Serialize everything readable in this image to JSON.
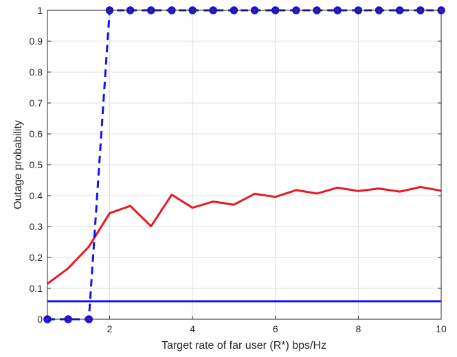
{
  "chart_data": {
    "type": "line",
    "xlabel": "Target rate of far user (R*) bps/Hz",
    "ylabel": "Outage probability",
    "xlim": [
      0.5,
      10
    ],
    "ylim": [
      0,
      1
    ],
    "xticks": [
      2,
      4,
      6,
      8,
      10
    ],
    "yticks": [
      0,
      0.1,
      0.2,
      0.3,
      0.4,
      0.5,
      0.6,
      0.7,
      0.8,
      0.9,
      1
    ],
    "grid": true,
    "series": [
      {
        "color": "#e8191e",
        "style": "solid",
        "x": [
          0.5,
          1,
          1.5,
          2,
          2.5,
          3,
          3.5,
          4,
          4.5,
          5,
          5.5,
          6,
          6.5,
          7,
          7.5,
          8,
          8.5,
          9,
          9.5,
          10
        ],
        "values": [
          0.115,
          0.165,
          0.235,
          0.343,
          0.367,
          0.301,
          0.403,
          0.361,
          0.381,
          0.371,
          0.406,
          0.396,
          0.418,
          0.407,
          0.426,
          0.415,
          0.423,
          0.413,
          0.428,
          0.416
        ]
      },
      {
        "color": "#1212ee",
        "style": "solid",
        "x": [
          0.5,
          10
        ],
        "values": [
          0.058,
          0.058
        ]
      },
      {
        "color": "#1212ee",
        "style": "dashed",
        "marker": "circle",
        "marker_face": "#1212ee",
        "marker_center": "#e8191e",
        "x": [
          0.5,
          1,
          1.5,
          2,
          2.5,
          3,
          3.5,
          4,
          4.5,
          5,
          5.5,
          6,
          6.5,
          7,
          7.5,
          8,
          8.5,
          9,
          9.5,
          10
        ],
        "values": [
          0,
          0,
          0,
          1,
          1,
          1,
          1,
          1,
          1,
          1,
          1,
          1,
          1,
          1,
          1,
          1,
          1,
          1,
          1,
          1
        ]
      }
    ]
  }
}
